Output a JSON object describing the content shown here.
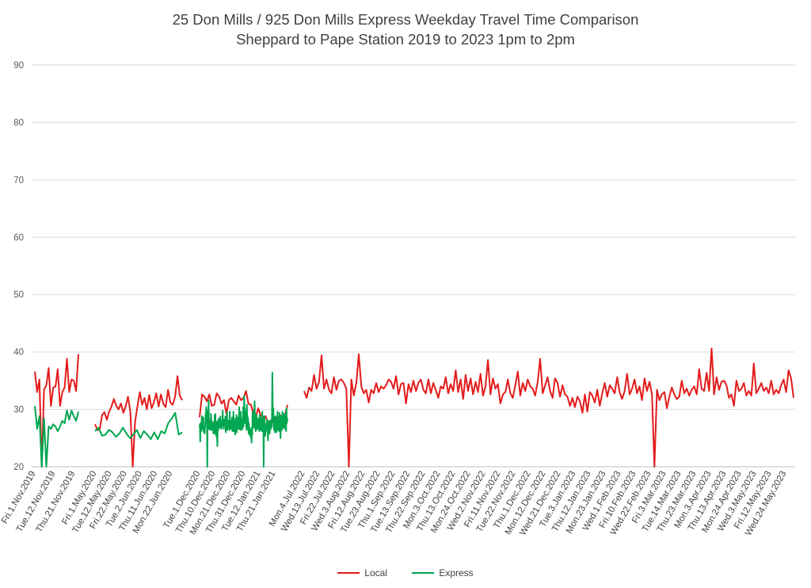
{
  "chart_data": {
    "type": "line",
    "title": "25 Don Mills / 925 Don Mills Express Weekday Travel Time Comparison",
    "subtitle": "Sheppard to Pape Station 2019 to 2023 1pm to 2pm",
    "ylim": [
      20,
      90
    ],
    "yticks": [
      20,
      30,
      40,
      50,
      60,
      70,
      80,
      90
    ],
    "grid": "horizontal",
    "legend_position": "bottom",
    "x_tick_labels": [
      "Fri.1.Nov.2019",
      "Tue.12.Nov.2019",
      "Thu.21.Nov.2019",
      "Fri.1.May.2020",
      "Tue.12.May.2020",
      "Fri.22.May.2020",
      "Tue.2.Jun.2020",
      "Thu.11.Jun.2020",
      "Mon.22.Jun.2020",
      "Tue.1.Dec.2020",
      "Thu.10.Dec.2020",
      "Mon.21.Dec.2020",
      "Thu.31.Dec.2020",
      "Tue.12.Jan.2021",
      "Thu.21.Jan.2021",
      "Mon.4.Jul.2022",
      "Wed.13.Jul.2022",
      "Fri.22.Jul.2022",
      "Wed.3.Aug.2022",
      "Fri.12.Aug.2022",
      "Tue.23.Aug.2022",
      "Thu.1.Sep.2022",
      "Tue.13.Sep.2022",
      "Thu.22.Sep.2022",
      "Mon.3.Oct.2022",
      "Thu.13.Oct.2022",
      "Mon.24.Oct.2022",
      "Wed.2.Nov.2022",
      "Fri.11.Nov.2022",
      "Tue.22.Nov.2022",
      "Thu.1.Dec.2022",
      "Mon.12.Dec.2022",
      "Wed.21.Dec.2022",
      "Tue.3.Jan.2023",
      "Thu.12.Jan.2023",
      "Mon.23.Jan.2023",
      "Wed.1.Feb.2023",
      "Fri.10.Feb.2023",
      "Wed.22.Feb.2023",
      "Fri.3.Mar.2023",
      "Tue.14.Mar.2023",
      "Thu.23.Mar.2023",
      "Mon.3.Apr.2023",
      "Thu.13.Apr.2023",
      "Mon.24.Apr.2023",
      "Wed.3.May.2023",
      "Fri.12.May.2023",
      "Wed.24.May.2023"
    ],
    "series": [
      {
        "name": "Local",
        "color": "#e31b1b",
        "segments": [
          [
            36.6,
            33.0,
            35.2,
            18.0,
            33.5,
            34.2,
            37.2,
            30.6,
            33.8,
            34.0,
            37.0,
            30.6,
            33.0,
            33.8,
            38.8,
            33.0,
            35.2,
            35.0,
            33.2,
            39.6
          ],
          [
            27.4,
            26.4,
            26.5,
            29.0,
            29.5,
            28.2,
            29.6,
            30.5,
            31.8,
            30.6,
            30.0,
            31.0,
            29.4,
            30.5,
            32.2,
            29.6,
            18.0,
            27.8,
            30.5,
            33.0,
            30.8,
            32.0,
            30.0,
            32.5,
            30.2,
            31.2,
            32.8,
            30.5,
            32.6,
            31.0,
            30.4,
            33.4,
            31.2,
            30.8,
            32.2,
            35.8,
            32.4,
            31.6
          ],
          [
            28.6,
            32.6,
            32.2,
            31.4,
            32.6,
            30.6,
            30.8,
            32.8,
            32.2,
            31.0,
            31.6,
            29.2,
            31.6,
            32.0,
            31.4,
            30.8,
            32.4,
            31.6,
            32.0,
            33.2,
            31.0,
            30.8,
            29.4,
            28.6,
            30.2,
            29.0,
            28.6,
            28.8,
            27.6,
            28.0,
            27.8,
            28.6,
            28.4,
            29.0,
            27.2,
            29.0,
            30.8
          ],
          [
            33.2,
            32.0,
            33.8,
            33.2,
            36.0,
            33.6,
            34.8,
            39.4,
            33.6,
            35.2,
            33.4,
            32.8,
            35.6,
            33.4,
            35.0,
            35.2,
            34.6,
            33.6,
            18.0,
            35.2,
            32.4,
            34.6,
            39.6,
            34.0,
            32.8,
            33.4,
            31.2,
            33.4,
            32.8,
            34.6,
            33.0,
            34.0,
            33.6,
            34.2,
            35.2,
            34.8,
            33.6,
            35.8,
            32.6,
            34.4,
            34.6,
            31.0,
            34.4,
            33.0,
            35.0,
            33.2,
            34.6,
            35.2,
            33.4,
            32.8,
            35.2,
            32.8,
            34.6,
            33.4,
            32.0,
            34.0,
            33.6,
            35.6,
            32.8,
            34.4,
            33.2,
            36.8,
            33.0,
            35.2,
            31.8,
            36.0,
            33.2,
            35.4,
            32.6,
            34.8,
            33.0,
            36.2,
            32.4,
            34.0,
            38.6,
            32.6,
            35.4,
            33.6,
            34.4,
            31.0,
            32.6,
            33.0,
            35.2,
            32.8,
            32.0,
            34.2,
            36.6,
            32.4,
            34.6,
            33.2,
            35.2,
            34.0,
            33.6,
            32.4,
            34.8,
            38.8,
            32.8,
            34.2,
            35.6,
            33.2,
            32.0,
            35.4,
            34.6,
            32.2,
            34.2,
            32.6,
            32.2,
            30.6,
            32.0,
            30.4,
            32.2,
            31.4,
            29.4,
            32.6,
            29.6,
            33.0,
            32.4,
            31.2,
            33.4,
            30.6,
            32.8,
            34.6,
            32.2,
            34.2,
            33.6,
            32.8,
            35.6,
            33.0,
            31.8,
            33.2,
            36.2,
            32.6,
            33.6,
            35.2,
            32.8,
            34.0,
            31.6,
            35.4,
            33.2,
            34.8,
            32.6,
            18.0,
            33.4,
            31.6,
            32.6,
            33.0,
            30.2,
            32.2,
            33.8,
            32.6,
            31.8,
            32.2,
            35.0,
            32.8,
            33.6,
            32.4,
            33.4,
            34.0,
            32.6,
            37.0,
            33.6,
            33.2,
            36.4,
            33.2,
            40.6,
            32.6,
            35.6,
            33.4,
            34.8,
            35.0,
            34.2,
            32.0,
            32.6,
            30.6,
            35.0,
            33.2,
            33.6,
            34.6,
            32.4,
            33.2,
            32.4,
            38.0,
            32.8,
            33.6,
            34.6,
            33.2,
            33.8,
            32.8,
            35.0,
            32.6,
            33.4,
            32.8,
            34.2,
            35.2,
            33.0,
            36.8,
            35.4,
            32.0
          ]
        ]
      },
      {
        "name": "Express",
        "color": "#00a650",
        "segments": [
          [
            30.6,
            26.6,
            28.8,
            18.0,
            28.4,
            18.0,
            27.0,
            26.6,
            27.4,
            27.0,
            26.2,
            27.0,
            28.0,
            27.6,
            29.8,
            28.2,
            29.8,
            28.8,
            28.0,
            29.6
          ],
          [
            26.2,
            26.8,
            25.4,
            25.6,
            26.4,
            26.0,
            25.2,
            25.8,
            26.8,
            25.8,
            25.0,
            25.6,
            26.4,
            25.0,
            26.2,
            25.6,
            24.8,
            26.0,
            24.8,
            26.2,
            25.8,
            27.6,
            28.4,
            29.4,
            25.6,
            26.0
          ],
          [
            26.8,
            27.4,
            24.4,
            27.6,
            27.0,
            26.2,
            27.8,
            28.8,
            28.2,
            26.6,
            27.8,
            28.6,
            26.2,
            26.0,
            26.8,
            25.8,
            26.8,
            27.0,
            29.2,
            29.0,
            30.4,
            28.6,
            29.8,
            18.0,
            29.0,
            27.2,
            26.6,
            31.6,
            27.2,
            26.8,
            28.0,
            26.4,
            27.4,
            26.6,
            29.2,
            28.0,
            26.4,
            27.4,
            27.0,
            26.6,
            27.8,
            25.8,
            27.4,
            27.0,
            25.8,
            29.0,
            27.6,
            29.2,
            26.8,
            25.4,
            27.8,
            26.2,
            25.4,
            23.6,
            28.0,
            26.6,
            26.4,
            28.4,
            27.2,
            27.8,
            27.0,
            26.8,
            28.8,
            27.4,
            27.8,
            26.6,
            28.0,
            27.2,
            27.6,
            29.8,
            27.0,
            28.0,
            26.6,
            27.8,
            28.2,
            27.4,
            27.8,
            28.8,
            26.0,
            26.8,
            28.6,
            27.2,
            29.6,
            26.4,
            27.6,
            27.0,
            28.0,
            26.8,
            27.4,
            26.4,
            29.6,
            27.0,
            26.6,
            28.0,
            27.2,
            26.6,
            27.8,
            28.6,
            26.2,
            27.4,
            27.0,
            29.6,
            26.2,
            26.6,
            27.8,
            27.0,
            25.6,
            28.4,
            26.8,
            27.6,
            29.0,
            26.0,
            27.0,
            26.6,
            28.6,
            27.4,
            27.0,
            26.6,
            30.4,
            26.8,
            27.4,
            26.4,
            28.4,
            29.6,
            26.4,
            27.2,
            27.8,
            28.4,
            26.6,
            27.2,
            30.4,
            27.0,
            29.2,
            32.4,
            28.6,
            30.2,
            27.6,
            28.0,
            29.6,
            27.2,
            26.4,
            30.8,
            28.2,
            26.6,
            28.6,
            27.8,
            25.8,
            27.6,
            26.2,
            25.6,
            26.8,
            25.4,
            26.2,
            25.0,
            26.4,
            24.2,
            26.8,
            25.6,
            29.6,
            27.4,
            27.0,
            28.6,
            26.8,
            29.8,
            31.4,
            28.8,
            27.4,
            26.2,
            28.8,
            26.4,
            29.0,
            27.8,
            28.4,
            26.6,
            27.8,
            28.0,
            27.2,
            28.4,
            26.2,
            29.0,
            27.0,
            28.4,
            26.4,
            28.6,
            27.8,
            27.2,
            26.2,
            29.6,
            27.8,
            26.6,
            28.2,
            18.0,
            27.2,
            28.8,
            26.6,
            27.0,
            25.4,
            26.8,
            26.2,
            27.6,
            27.0,
            28.2,
            27.8,
            26.6,
            24.6,
            28.0,
            26.8,
            27.0,
            27.6,
            25.8,
            27.2,
            28.0,
            27.4,
            26.6,
            28.2,
            27.0,
            29.8,
            36.4,
            29.4,
            28.2,
            30.2,
            27.0,
            26.4,
            28.6,
            26.6,
            26.0,
            28.8,
            27.4,
            27.2,
            26.0,
            28.2,
            27.0,
            29.6,
            26.4,
            27.2,
            28.0,
            26.6,
            26.2,
            29.4,
            28.6,
            27.8,
            25.0,
            26.6,
            28.8,
            28.2,
            27.2,
            26.4,
            29.6,
            27.0,
            26.8,
            28.2,
            27.6,
            29.2,
            26.8,
            27.6,
            26.6,
            29.2,
            27.0,
            26.2,
            30.2,
            27.6,
            28.4,
            28.0
          ]
        ]
      }
    ]
  }
}
